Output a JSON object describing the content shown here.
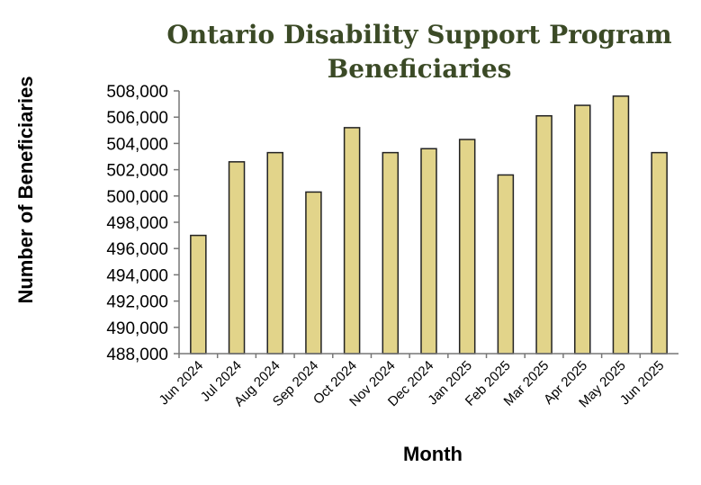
{
  "chart_data": {
    "type": "bar",
    "title_lines": [
      "Ontario Disability Support Program",
      "Beneficiaries"
    ],
    "xlabel": "Month",
    "ylabel": "Number of Beneficiaries",
    "categories": [
      "Jun 2024",
      "Jul 2024",
      "Aug 2024",
      "Sep 2024",
      "Oct 2024",
      "Nov 2024",
      "Dec 2024",
      "Jan 2025",
      "Feb 2025",
      "Mar 2025",
      "Apr 2025",
      "May 2025",
      "Jun 2025"
    ],
    "values": [
      497000,
      502600,
      503300,
      500300,
      505200,
      503300,
      503600,
      504300,
      501600,
      506100,
      506900,
      507600,
      503300
    ],
    "ylim": [
      488000,
      508000
    ],
    "yticks": [
      488000,
      490000,
      492000,
      494000,
      496000,
      498000,
      500000,
      502000,
      504000,
      506000,
      508000
    ],
    "ytick_labels": [
      "488,000",
      "490,000",
      "492,000",
      "494,000",
      "496,000",
      "498,000",
      "500,000",
      "502,000",
      "504,000",
      "506,000",
      "508,000"
    ],
    "bar_color": "#e2d48a",
    "title_color": "#3b4a26",
    "grid": false,
    "legend": "none"
  }
}
